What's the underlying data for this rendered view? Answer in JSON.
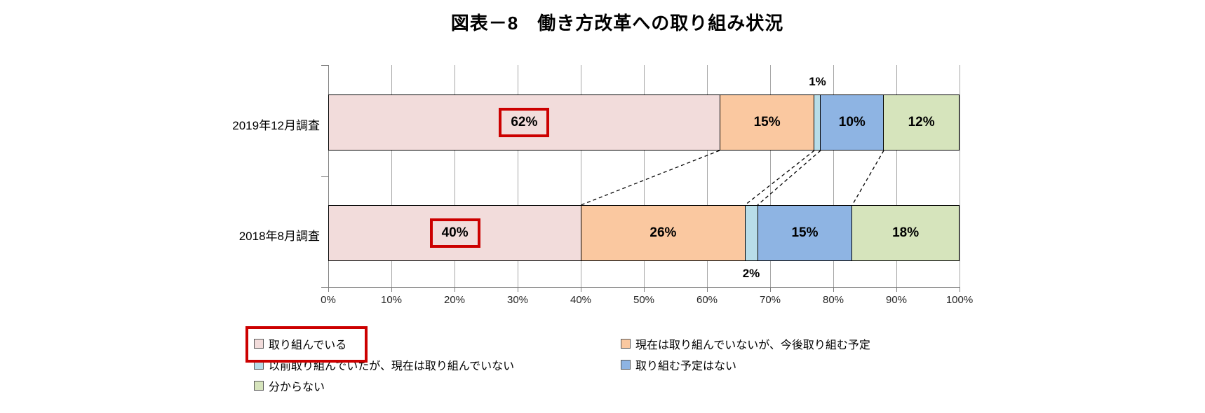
{
  "title": "図表－8　働き方改革への取り組み状況",
  "chart_data": {
    "type": "bar",
    "orientation": "horizontal",
    "stacked": "percent",
    "categories": [
      "2019年12月調査",
      "2018年8月調査"
    ],
    "series": [
      {
        "name": "取り組んでいる",
        "color": "#F2DCDB",
        "values": [
          62,
          40
        ]
      },
      {
        "name": "現在は取り組んでいないが、今後取り組む予定",
        "color": "#FAC8A0",
        "values": [
          15,
          26
        ]
      },
      {
        "name": "以前取り組んでいたが、現在は取り組んでいない",
        "color": "#B8DDE8",
        "values": [
          1,
          2
        ]
      },
      {
        "name": "取り組む予定はない",
        "color": "#8EB4E3",
        "values": [
          10,
          15
        ]
      },
      {
        "name": "分からない",
        "color": "#D6E4BC",
        "values": [
          12,
          18
        ]
      }
    ],
    "xlim": [
      0,
      100
    ],
    "x_ticks": [
      "0%",
      "10%",
      "20%",
      "30%",
      "40%",
      "50%",
      "60%",
      "70%",
      "80%",
      "90%",
      "100%"
    ],
    "grid": true,
    "legend_position": "bottom",
    "legend_columns": [
      [
        0,
        2,
        4
      ],
      [
        1,
        3
      ]
    ],
    "annotations": {
      "highlight_color": "#CC0000",
      "boxed_segment_labels": [
        {
          "bar": 0,
          "series": 0
        },
        {
          "bar": 1,
          "series": 0
        }
      ],
      "boxed_legend_series": 0,
      "outside_labels": [
        {
          "bar": 0,
          "series": 2,
          "text": "1%",
          "position": "above"
        },
        {
          "bar": 1,
          "series": 2,
          "text": "2%",
          "position": "below"
        }
      ],
      "connector_boundaries_after_series": [
        0,
        1,
        2,
        3
      ]
    }
  }
}
